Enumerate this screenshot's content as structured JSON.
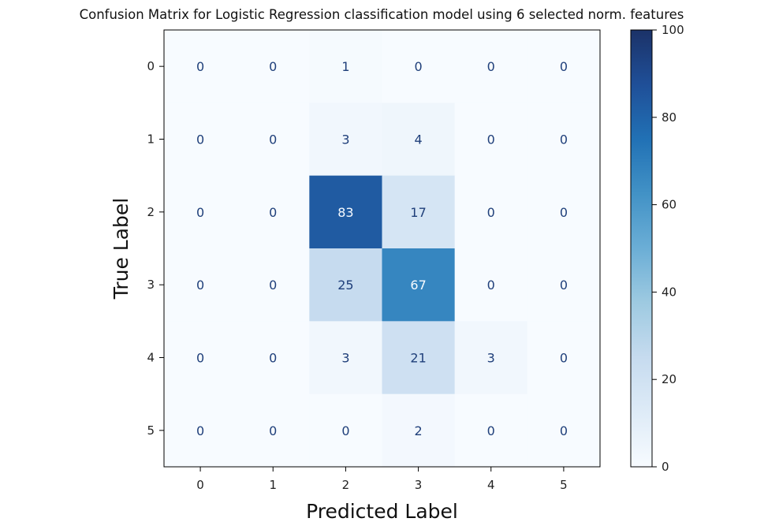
{
  "chart_data": {
    "type": "heatmap",
    "title": "Confusion Matrix for Logistic Regression classification model using 6 selected norm. features",
    "xlabel": "Predicted Label",
    "ylabel": "True Label",
    "x_categories": [
      "0",
      "1",
      "2",
      "3",
      "4",
      "5"
    ],
    "y_categories": [
      "0",
      "1",
      "2",
      "3",
      "4",
      "5"
    ],
    "values": [
      [
        0,
        0,
        1,
        0,
        0,
        0
      ],
      [
        0,
        0,
        3,
        4,
        0,
        0
      ],
      [
        0,
        0,
        83,
        17,
        0,
        0
      ],
      [
        0,
        0,
        25,
        67,
        0,
        0
      ],
      [
        0,
        0,
        3,
        21,
        3,
        0
      ],
      [
        0,
        0,
        0,
        2,
        0,
        0
      ]
    ],
    "colormap": "Blues",
    "colorbar": {
      "range": [
        0,
        100
      ],
      "ticks": [
        "0",
        "20",
        "40",
        "60",
        "80",
        "100"
      ]
    },
    "grid": false
  }
}
